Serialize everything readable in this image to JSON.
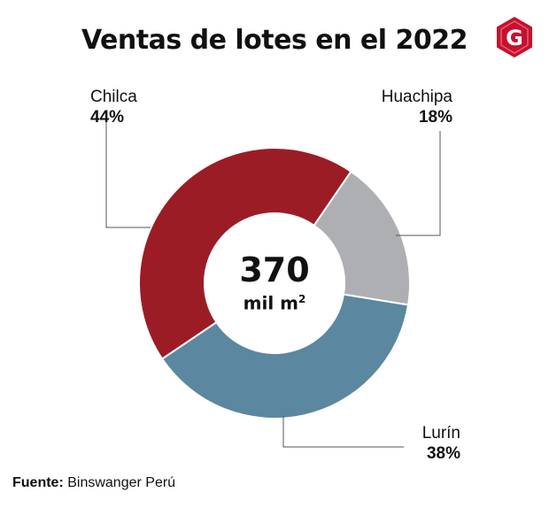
{
  "chart_data": {
    "type": "pie",
    "title": "Ventas de lotes en el 2022",
    "center_value": "370",
    "center_unit": "mil m",
    "center_unit_sup": "2",
    "categories": [
      "Chilca",
      "Huachipa",
      "Lurín"
    ],
    "values": [
      44,
      18,
      38
    ],
    "value_labels": [
      "44%",
      "18%",
      "38%"
    ],
    "colors": [
      "#9c1c26",
      "#aeafb3",
      "#5b87a0"
    ],
    "donut": true,
    "legend": "none"
  },
  "source": {
    "prefix": "Fuente:",
    "text": " Binswanger Perú"
  },
  "logo": {
    "icon": "g-logo-icon",
    "letter": "G",
    "color": "#c8102e"
  }
}
